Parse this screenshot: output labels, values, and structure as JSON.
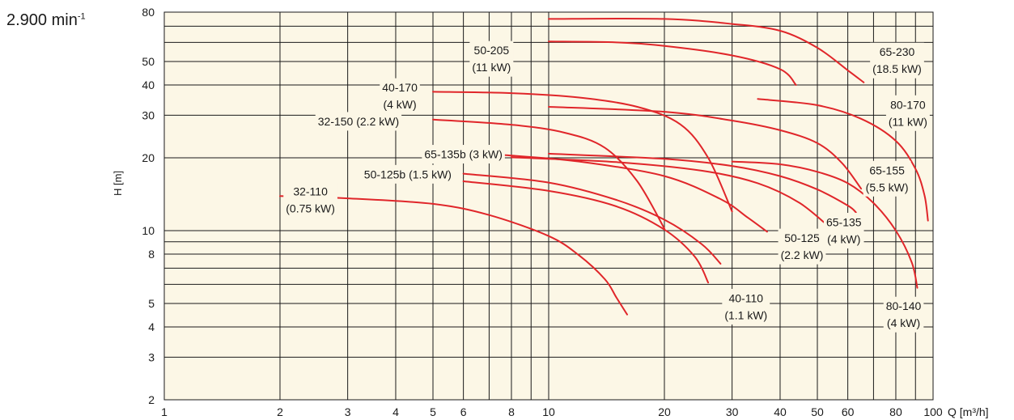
{
  "speed": {
    "value": "2.900 min",
    "exp": "-1"
  },
  "chart_data": {
    "type": "line",
    "title": "",
    "xlabel": "Q [m³/h]",
    "ylabel": "H [m]",
    "xscale": "log",
    "yscale": "log",
    "xlim": [
      1,
      100
    ],
    "ylim": [
      2,
      80
    ],
    "grid": true,
    "legend": "none",
    "background": "#fcf7e6",
    "curve_color": "#e0262a",
    "x_ticks": [
      1,
      2,
      3,
      4,
      5,
      6,
      8,
      10,
      20,
      30,
      40,
      50,
      60,
      80,
      100
    ],
    "x_tick_labels": [
      "1",
      "2",
      "3",
      "4",
      "5",
      "6",
      "8",
      "10",
      "20",
      "30",
      "40",
      "50",
      "60",
      "80",
      "100"
    ],
    "x_extra_gridlines": [
      7,
      9,
      70,
      90
    ],
    "y_ticks": [
      2,
      3,
      4,
      5,
      8,
      10,
      20,
      30,
      40,
      50,
      80
    ],
    "y_tick_labels": [
      "2",
      "3",
      "4",
      "5",
      "8",
      "10",
      "20",
      "30",
      "40",
      "50",
      "80"
    ],
    "y_extra_gridlines": [
      6,
      7,
      9,
      60,
      70
    ],
    "series": [
      {
        "name": "32-110 (0.75 kW)",
        "label": [
          "32-110",
          "(0.75 kW)"
        ],
        "label_pos": [
          2.4,
          13.4
        ],
        "points": [
          [
            2,
            13.9
          ],
          [
            3,
            13.6
          ],
          [
            5,
            12.9
          ],
          [
            7,
            11.6
          ],
          [
            10,
            9.5
          ],
          [
            12,
            7.9
          ],
          [
            14,
            6.3
          ],
          [
            15,
            5.3
          ],
          [
            16,
            4.5
          ]
        ]
      },
      {
        "name": "40-110 (1.1 kW)",
        "label": [
          "40-110",
          "(1.1 kW)"
        ],
        "label_pos": [
          32.6,
          4.85
        ],
        "points": [
          [
            6,
            16.0
          ],
          [
            10,
            14.6
          ],
          [
            15,
            12.6
          ],
          [
            20,
            10.1
          ],
          [
            24,
            7.8
          ],
          [
            26,
            6.1
          ]
        ]
      },
      {
        "name": "50-125b (1.5 kW)",
        "label": [
          "50-125b (1.5 kW)"
        ],
        "label_pos": [
          4.3,
          17.1
        ],
        "points": [
          [
            6,
            17.2
          ],
          [
            10,
            15.8
          ],
          [
            15,
            13.4
          ],
          [
            20,
            11.1
          ],
          [
            25,
            8.8
          ],
          [
            28,
            7.3
          ]
        ]
      },
      {
        "name": "32-150 (2.2 kW)",
        "label": [
          "32-150 (2.2 kW)"
        ],
        "label_pos": [
          3.2,
          28.3
        ],
        "points": [
          [
            5,
            28.8
          ],
          [
            8,
            27.4
          ],
          [
            11,
            25.4
          ],
          [
            14,
            22.0
          ],
          [
            17,
            16.0
          ],
          [
            20,
            10.2
          ]
        ]
      },
      {
        "name": "40-170 (4 kW)",
        "label": [
          "40-170",
          "(4 kW)"
        ],
        "label_pos": [
          4.1,
          36.0
        ],
        "points": [
          [
            5,
            37.5
          ],
          [
            8,
            37.0
          ],
          [
            12,
            35.5
          ],
          [
            17,
            32.5
          ],
          [
            22,
            27.5
          ],
          [
            26,
            20.0
          ],
          [
            30,
            12.0
          ]
        ]
      },
      {
        "name": "65-135b (3 kW)",
        "label": [
          "65-135b (3 kW)"
        ],
        "label_pos": [
          6.0,
          20.7
        ],
        "points": [
          [
            7.5,
            20.6
          ],
          [
            12,
            19.3
          ],
          [
            20,
            16.8
          ],
          [
            28,
            13.5
          ],
          [
            33,
            11.3
          ],
          [
            37,
            9.9
          ]
        ]
      },
      {
        "name": "50-125 (2.2 kW)",
        "label": [
          "50-125",
          "(2.2 kW)"
        ],
        "label_pos": [
          45.6,
          8.6
        ],
        "points": [
          [
            8,
            20.1
          ],
          [
            15,
            19.2
          ],
          [
            25,
            17.7
          ],
          [
            35,
            15.7
          ],
          [
            45,
            13.0
          ],
          [
            55,
            10.0
          ]
        ]
      },
      {
        "name": "65-135 (4 kW)",
        "label": [
          "65-135",
          "(4 kW)"
        ],
        "label_pos": [
          58.6,
          10.0
        ],
        "points": [
          [
            10,
            20.8
          ],
          [
            20,
            19.8
          ],
          [
            30,
            18.5
          ],
          [
            40,
            16.8
          ],
          [
            50,
            14.8
          ],
          [
            60,
            12.7
          ],
          [
            63,
            11.9
          ]
        ]
      },
      {
        "name": "65-155 (5.5 kW)",
        "label": [
          "65-155",
          "(5.5 kW)"
        ],
        "label_pos": [
          75.9,
          16.4
        ],
        "points": [
          [
            10,
            32.5
          ],
          [
            20,
            31.0
          ],
          [
            30,
            28.5
          ],
          [
            40,
            26.0
          ],
          [
            50,
            23.0
          ],
          [
            58,
            19.0
          ],
          [
            65,
            14.9
          ]
        ]
      },
      {
        "name": "80-140 (4 kW)",
        "label": [
          "80-140",
          "(4 kW)"
        ],
        "label_pos": [
          83.8,
          4.5
        ],
        "points": [
          [
            30,
            19.3
          ],
          [
            40,
            18.8
          ],
          [
            50,
            17.5
          ],
          [
            60,
            15.7
          ],
          [
            70,
            13.0
          ],
          [
            80,
            10.0
          ],
          [
            88,
            7.4
          ],
          [
            91,
            5.8
          ]
        ]
      },
      {
        "name": "80-170 (11 kW)",
        "label": [
          "80-170",
          "(11 kW)"
        ],
        "label_pos": [
          86.0,
          30.6
        ],
        "points": [
          [
            35,
            35.0
          ],
          [
            50,
            33.0
          ],
          [
            65,
            29.0
          ],
          [
            80,
            23.5
          ],
          [
            90,
            18.0
          ],
          [
            95,
            14.0
          ],
          [
            97,
            11.0
          ]
        ]
      },
      {
        "name": "50-205 (11 kW)",
        "label": [
          "50-205",
          "(11 kW)"
        ],
        "label_pos": [
          7.1,
          51.3
        ],
        "points": [
          [
            10,
            60.5
          ],
          [
            15,
            60.0
          ],
          [
            20,
            58.0
          ],
          [
            30,
            53.0
          ],
          [
            40,
            46.5
          ],
          [
            44,
            40.0
          ]
        ]
      },
      {
        "name": "65-230 (18.5 kW)",
        "label": [
          "65-230",
          "(18.5 kW)"
        ],
        "label_pos": [
          80.6,
          50.5
        ],
        "points": [
          [
            10,
            75.0
          ],
          [
            20,
            75.0
          ],
          [
            30,
            71.5
          ],
          [
            40,
            67.0
          ],
          [
            50,
            57.0
          ],
          [
            60,
            46.0
          ],
          [
            66,
            41.0
          ]
        ]
      }
    ]
  }
}
